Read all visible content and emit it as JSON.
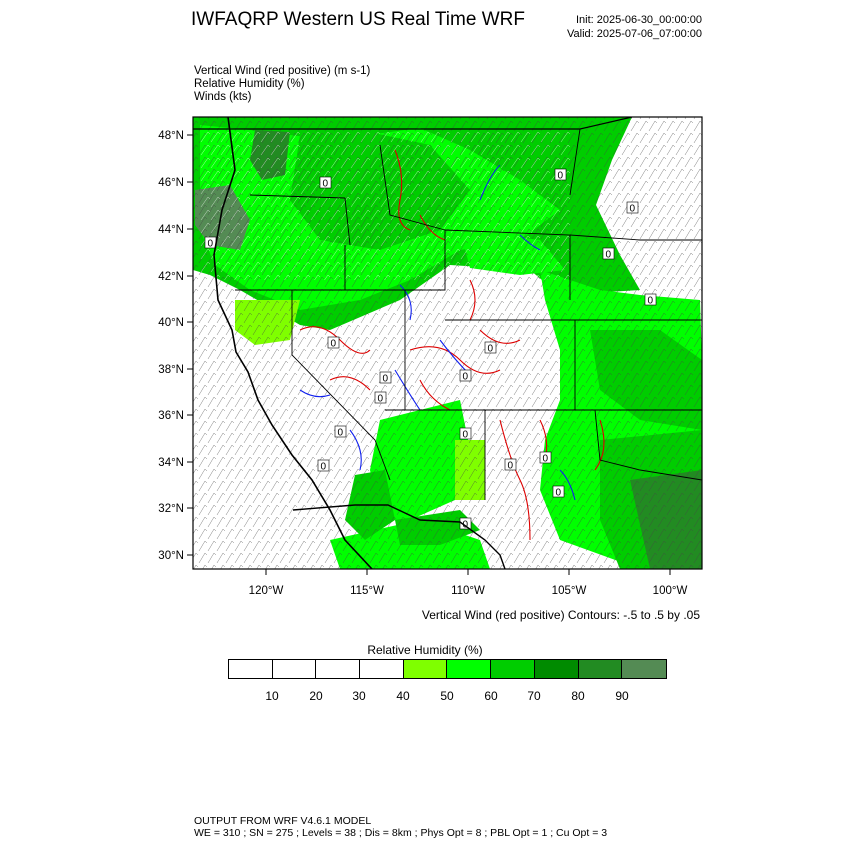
{
  "header": {
    "title": "IWFAQRP Western US Real Time WRF",
    "init": "Init: 2025-06-30_00:00:00",
    "valid": "Valid: 2025-07-06_07:00:00"
  },
  "fields": {
    "vertical_wind": "Vertical Wind (red positive)   (m s-1)",
    "relative_humidity": "Relative Humidity   (%)",
    "winds": "Winds   (kts)"
  },
  "map": {
    "lat_labels": [
      "48°N",
      "46°N",
      "44°N",
      "42°N",
      "40°N",
      "38°N",
      "36°N",
      "34°N",
      "32°N",
      "30°N"
    ],
    "lon_labels": [
      "120°W",
      "115°W",
      "110°W",
      "105°W",
      "100°W"
    ],
    "contour_note": "Vertical Wind (red positive) Contours: -.5 to .5 by .05",
    "contour_zero_label": "0",
    "colors": {
      "rh_40": "#7fff00",
      "rh_50": "#00ff00",
      "rh_60": "#00cd00",
      "rh_70": "#008b00",
      "rh_80": "#228b22",
      "rh_90": "#548b54",
      "updraft": "#dd0000",
      "downdraft": "#1020ee"
    }
  },
  "colorbar": {
    "title": "Relative Humidity   (%)",
    "labels": [
      "10",
      "20",
      "30",
      "40",
      "50",
      "60",
      "70",
      "80",
      "90"
    ],
    "colors": [
      "#ffffff",
      "#ffffff",
      "#ffffff",
      "#ffffff",
      "#7fff00",
      "#00ff00",
      "#00cd00",
      "#008b00",
      "#228b22",
      "#548b54"
    ]
  },
  "footer": {
    "line1": "OUTPUT FROM WRF V4.6.1 MODEL",
    "line2": "WE = 310 ; SN = 275 ; Levels = 38 ; Dis = 8km ; Phys Opt = 8 ; PBL Opt = 1 ; Cu Opt = 3"
  }
}
